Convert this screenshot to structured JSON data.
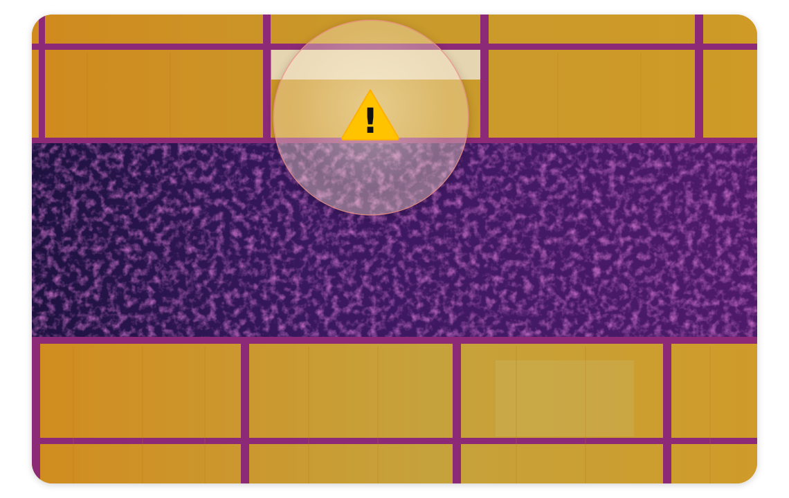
{
  "image": {
    "subject": "thermal-image-of-solar-panel-array",
    "palette": {
      "hot_panel": "#d9961a",
      "warm_panel": "#c7a13a",
      "frame": "#8a2a7a",
      "shaded_row": "#3a1a5c",
      "hotspot_glow": "#f3e7c0"
    }
  },
  "overlay": {
    "magnifier_icon": "magnifier-lens",
    "warning_icon": "warning-triangle-icon",
    "warning_glyph": "!",
    "warning_color": "#ffc300"
  }
}
